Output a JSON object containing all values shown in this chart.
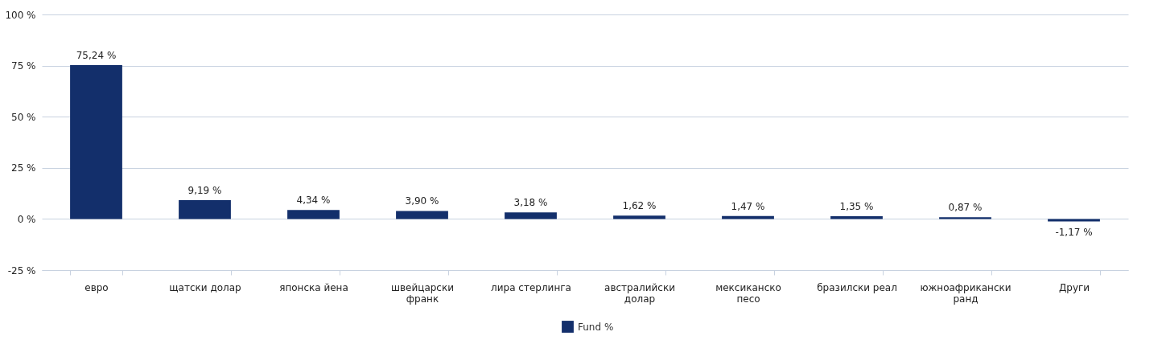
{
  "chart_data": {
    "type": "bar",
    "categories": [
      "евро",
      "щатски долар",
      "японска йена",
      "швейцарски франк",
      "лира стерлинга",
      "австралийски долар",
      "мексиканско песо",
      "бразилски реал",
      "южноафрикански ранд",
      "Други"
    ],
    "series": [
      {
        "name": "Fund %",
        "color": "#132f6b",
        "values": [
          75.24,
          9.19,
          4.34,
          3.9,
          3.18,
          1.62,
          1.47,
          1.35,
          0.87,
          -1.17
        ],
        "value_labels": [
          "75,24 %",
          "9,19 %",
          "4,34 %",
          "3,90 %",
          "3,18 %",
          "1,62 %",
          "1,47 %",
          "1,35 %",
          "0,87 %",
          "-1,17 %"
        ]
      }
    ],
    "ylim": [
      -25,
      100
    ],
    "yticks": [
      {
        "value": -25,
        "label": "-25 %"
      },
      {
        "value": 0,
        "label": "0 %"
      },
      {
        "value": 25,
        "label": "25 %"
      },
      {
        "value": 50,
        "label": "50 %"
      },
      {
        "value": 75,
        "label": "75 %"
      },
      {
        "value": 100,
        "label": "100 %"
      }
    ],
    "grid": "y",
    "legend": "bottom"
  }
}
